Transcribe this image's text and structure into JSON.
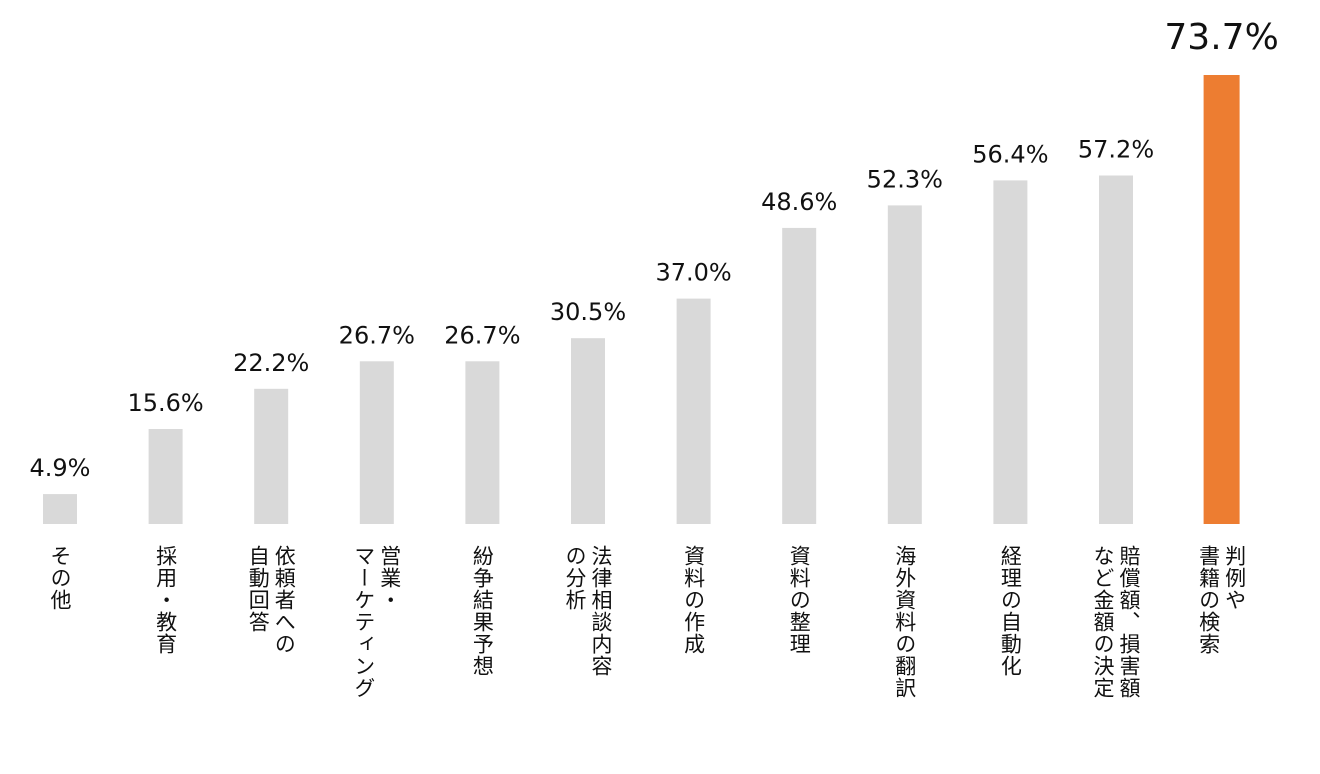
{
  "chart_data": {
    "type": "bar",
    "categories": [
      "その他",
      "採用・教育",
      "依頼者への\n自動回答",
      "営業・\nマーケティング",
      "紛争結果予想",
      "法律相談内容\nの分析",
      "資料の作成",
      "資料の整理",
      "海外資料の翻訳",
      "経理の自動化",
      "賠償額、損害額\nなど金額の決定",
      "判例や\n書籍の検索"
    ],
    "values": [
      4.9,
      15.6,
      22.2,
      26.7,
      26.7,
      30.5,
      37.0,
      48.6,
      52.3,
      56.4,
      57.2,
      73.7
    ],
    "value_labels": [
      "4.9%",
      "15.6%",
      "22.2%",
      "26.7%",
      "26.7%",
      "30.5%",
      "37.0%",
      "48.6%",
      "52.3%",
      "56.4%",
      "57.2%",
      "73.7%"
    ],
    "highlight_index": 11,
    "colors": {
      "bar": "#d9d9d9",
      "highlight": "#ed7d31",
      "text": "#111111"
    },
    "ylim": [
      0,
      73.7
    ],
    "grid": false,
    "legend": "none"
  }
}
